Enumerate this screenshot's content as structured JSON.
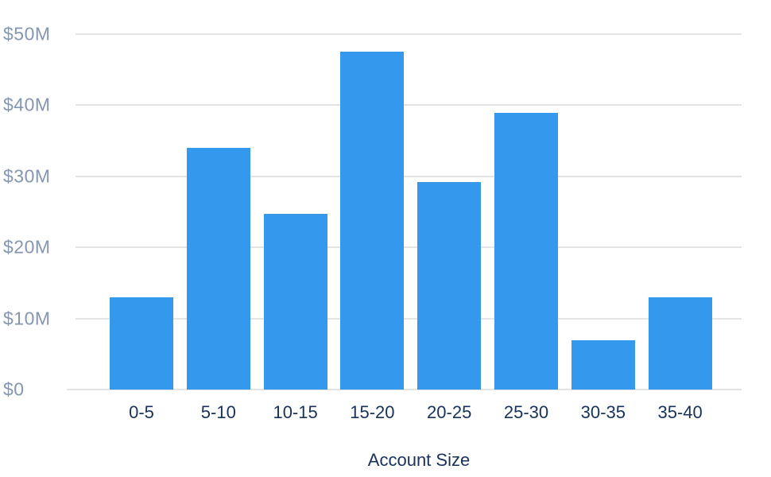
{
  "chart_data": {
    "type": "bar",
    "title": "",
    "xlabel": "Account Size",
    "ylabel": "",
    "categories": [
      "0-5",
      "5-10",
      "10-15",
      "15-20",
      "20-25",
      "25-30",
      "30-35",
      "35-40"
    ],
    "values": [
      13,
      34,
      24.7,
      47.5,
      29.2,
      38.9,
      6.9,
      13
    ],
    "ylim": [
      0,
      50
    ],
    "y_ticks": [
      0,
      10,
      20,
      30,
      40,
      50
    ],
    "y_tick_labels": [
      "$0",
      "$10M",
      "$20M",
      "$30M",
      "$40M",
      "$50M"
    ],
    "grid": true,
    "legend": "none",
    "colors": {
      "bar": "#3498EC",
      "gridline": "#E4E4E6",
      "y_tick_label": "#8496B0",
      "x_tick_label": "#16325C",
      "axis_title": "#16325C",
      "background": "#FFFFFF"
    }
  }
}
